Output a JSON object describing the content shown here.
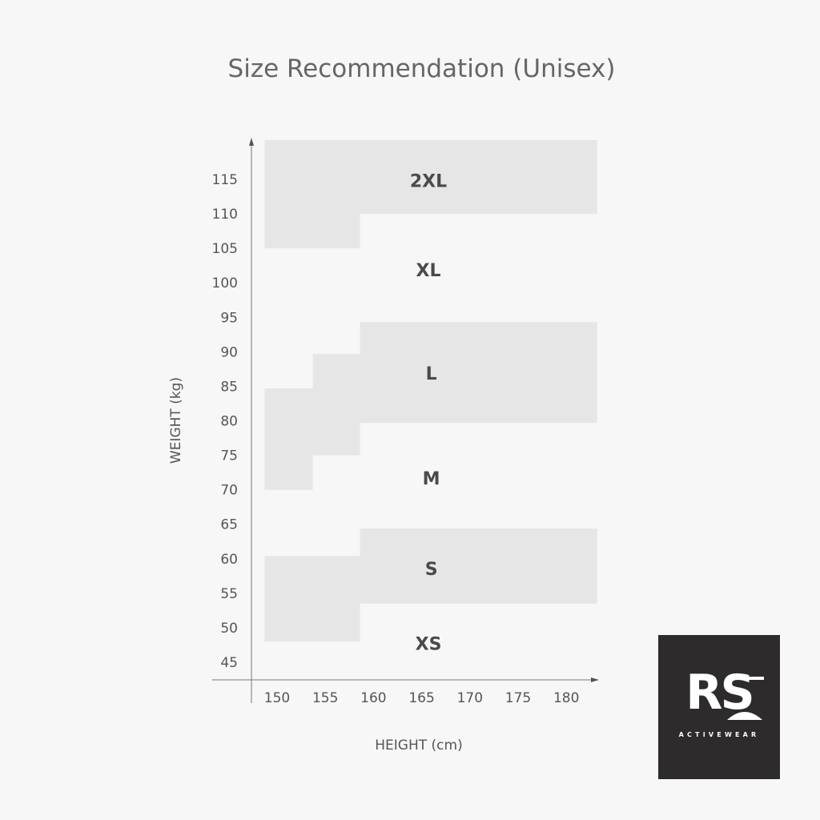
{
  "chart_data": {
    "type": "area",
    "title": "Size Recommendation (Unisex)",
    "xlabel": "HEIGHT (cm)",
    "ylabel": "WEIGHT (kg)",
    "x_ticks": [
      150,
      155,
      160,
      165,
      170,
      175,
      180
    ],
    "y_ticks": [
      45,
      50,
      55,
      60,
      65,
      70,
      75,
      80,
      85,
      90,
      95,
      100,
      105,
      110,
      115
    ],
    "grid": false,
    "fill_color": "#e6e6e6",
    "regions": [
      {
        "name": "2XL",
        "shaded": true,
        "label_at": [
          165.7,
          114.8
        ],
        "polygon": [
          [
            148.7,
            120.7
          ],
          [
            183.2,
            120.7
          ],
          [
            183.2,
            110
          ],
          [
            158.6,
            110
          ],
          [
            158.6,
            105
          ],
          [
            148.7,
            105
          ]
        ]
      },
      {
        "name": "XL",
        "shaded": false,
        "label_at": [
          165.7,
          101.9
        ]
      },
      {
        "name": "L",
        "shaded": true,
        "label_at": [
          166,
          86.9
        ],
        "polygon": [
          [
            158.6,
            94.3
          ],
          [
            183.2,
            94.3
          ],
          [
            183.2,
            79.7
          ],
          [
            158.6,
            79.7
          ],
          [
            158.6,
            75
          ],
          [
            153.7,
            75
          ],
          [
            153.7,
            70
          ],
          [
            148.7,
            70
          ],
          [
            148.7,
            84.7
          ],
          [
            153.7,
            84.7
          ],
          [
            153.7,
            89.7
          ],
          [
            158.6,
            89.7
          ]
        ]
      },
      {
        "name": "M",
        "shaded": false,
        "label_at": [
          166,
          71.7
        ]
      },
      {
        "name": "S",
        "shaded": true,
        "label_at": [
          166,
          58.6
        ],
        "polygon": [
          [
            158.6,
            64.4
          ],
          [
            183.2,
            64.4
          ],
          [
            183.2,
            53.5
          ],
          [
            158.6,
            53.5
          ],
          [
            158.6,
            48
          ],
          [
            148.7,
            48
          ],
          [
            148.7,
            60.4
          ],
          [
            158.6,
            60.4
          ]
        ]
      },
      {
        "name": "XS",
        "shaded": false,
        "label_at": [
          165.7,
          47.7
        ]
      }
    ]
  },
  "logo": {
    "text": "RS",
    "subtext": "ACTIVEWEAR",
    "bg": "#2d2b2c"
  }
}
